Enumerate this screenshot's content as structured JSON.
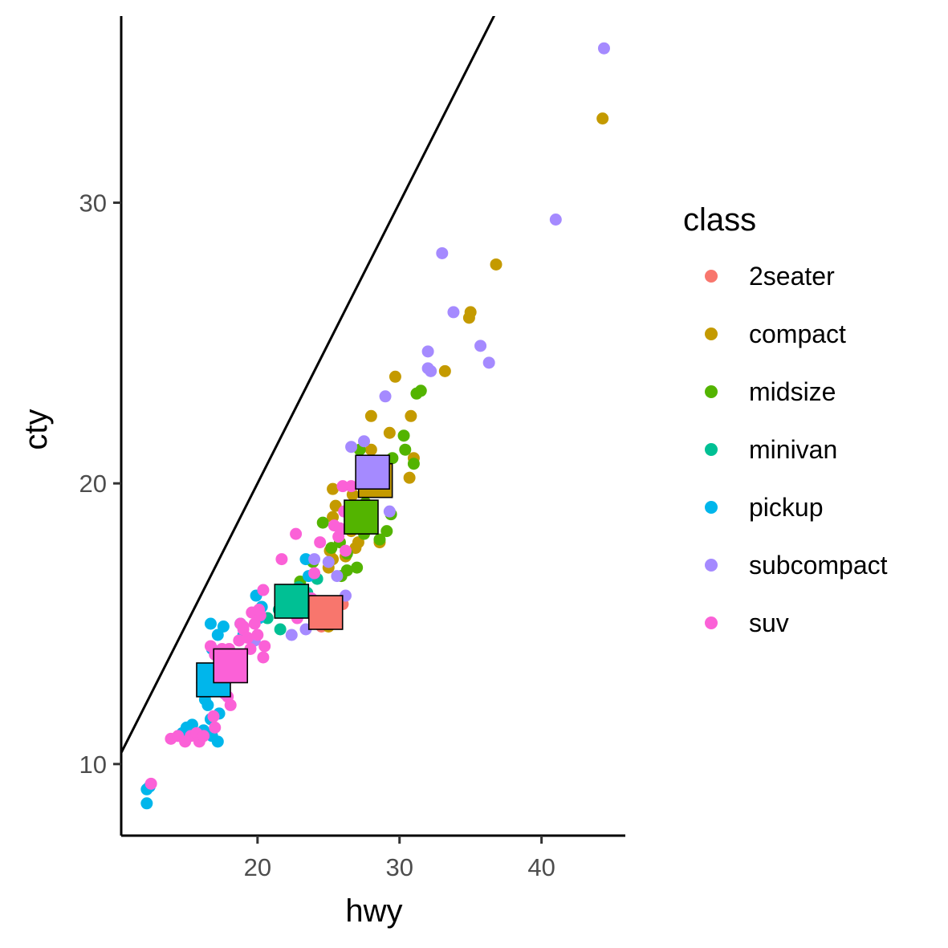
{
  "chart_data": {
    "type": "scatter",
    "title": "",
    "xlabel": "hwy",
    "ylabel": "cty",
    "xlim": [
      10.4,
      45.9
    ],
    "ylim": [
      7.45,
      36.65
    ],
    "x_ticks": [
      20,
      30,
      40
    ],
    "y_ticks": [
      10,
      20,
      30
    ],
    "grid": false,
    "legend": {
      "title": "class",
      "position": "right",
      "entries": [
        "2seater",
        "compact",
        "midsize",
        "minivan",
        "pickup",
        "subcompact",
        "suv"
      ]
    },
    "colors": {
      "2seater": "#F8766D",
      "compact": "#C49A00",
      "midsize": "#53B400",
      "minivan": "#00C094",
      "pickup": "#00B6EB",
      "subcompact": "#A58AFF",
      "suv": "#FB61D7"
    },
    "reference_line": {
      "intercept": 0,
      "slope": 1
    },
    "series": [
      {
        "name": "2seater",
        "points": [
          [
            24.2,
            15.0
          ],
          [
            24.8,
            15.3
          ],
          [
            25.5,
            15.4
          ],
          [
            26.0,
            15.7
          ],
          [
            24.5,
            14.9
          ]
        ]
      },
      {
        "name": "compact",
        "points": [
          [
            44.3,
            33.0
          ],
          [
            36.8,
            27.8
          ],
          [
            35.0,
            26.1
          ],
          [
            34.9,
            25.9
          ],
          [
            33.2,
            24.0
          ],
          [
            29.7,
            23.8
          ],
          [
            28.0,
            22.4
          ],
          [
            30.8,
            22.4
          ],
          [
            29.3,
            21.8
          ],
          [
            28.0,
            21.2
          ],
          [
            29.1,
            20.8
          ],
          [
            31.0,
            20.9
          ],
          [
            30.7,
            20.2
          ],
          [
            27.5,
            20.4
          ],
          [
            26.7,
            19.6
          ],
          [
            25.3,
            19.8
          ],
          [
            25.5,
            19.2
          ],
          [
            25.3,
            18.8
          ],
          [
            26.6,
            18.3
          ],
          [
            27.1,
            17.9
          ],
          [
            25.1,
            17.6
          ],
          [
            25.3,
            17.3
          ],
          [
            26.2,
            17.4
          ],
          [
            25.0,
            17.0
          ],
          [
            28.6,
            17.9
          ],
          [
            26.9,
            17.7
          ],
          [
            25.0,
            14.9
          ]
        ]
      },
      {
        "name": "midsize",
        "points": [
          [
            27.2,
            21.2
          ],
          [
            29.5,
            20.9
          ],
          [
            30.4,
            21.2
          ],
          [
            31.2,
            23.2
          ],
          [
            31.5,
            23.3
          ],
          [
            30.3,
            21.7
          ],
          [
            31.0,
            20.7
          ],
          [
            29.4,
            18.9
          ],
          [
            27.6,
            19.3
          ],
          [
            26.5,
            18.7
          ],
          [
            24.6,
            18.6
          ],
          [
            25.8,
            17.9
          ],
          [
            26.3,
            17.5
          ],
          [
            28.6,
            18.0
          ],
          [
            29.1,
            18.3
          ],
          [
            27.5,
            18.2
          ],
          [
            25.2,
            17.7
          ],
          [
            26.3,
            16.9
          ],
          [
            27.0,
            17.0
          ],
          [
            25.9,
            16.7
          ],
          [
            23.9,
            17.2
          ],
          [
            22.5,
            16.1
          ],
          [
            23.0,
            16.5
          ],
          [
            24.0,
            15.8
          ]
        ]
      },
      {
        "name": "minivan",
        "points": [
          [
            21.5,
            15.5
          ],
          [
            21.6,
            14.8
          ],
          [
            22.9,
            16.3
          ],
          [
            20.7,
            15.2
          ],
          [
            22.1,
            15.6
          ],
          [
            24.2,
            16.6
          ],
          [
            23.5,
            16.1
          ]
        ]
      },
      {
        "name": "pickup",
        "points": [
          [
            12.2,
            9.1
          ],
          [
            12.2,
            8.6
          ],
          [
            12.4,
            9.2
          ],
          [
            16.5,
            12.1
          ],
          [
            16.3,
            12.3
          ],
          [
            15.0,
            11.3
          ],
          [
            15.4,
            11.4
          ],
          [
            17.2,
            10.8
          ],
          [
            16.8,
            11.0
          ],
          [
            16.1,
            12.9
          ],
          [
            17.0,
            12.9
          ],
          [
            17.1,
            13.4
          ],
          [
            16.8,
            14.1
          ],
          [
            17.2,
            14.6
          ],
          [
            16.7,
            15.0
          ],
          [
            17.6,
            14.9
          ],
          [
            19.0,
            14.6
          ],
          [
            20.1,
            15.2
          ],
          [
            19.9,
            16.0
          ],
          [
            20.3,
            15.6
          ],
          [
            18.8,
            15.0
          ],
          [
            18.4,
            13.3
          ],
          [
            22.2,
            15.6
          ],
          [
            23.6,
            16.7
          ],
          [
            23.4,
            17.3
          ],
          [
            14.7,
            11.1
          ],
          [
            15.2,
            11.2
          ],
          [
            16.7,
            11.6
          ],
          [
            17.3,
            11.8
          ],
          [
            16.2,
            11.2
          ]
        ]
      },
      {
        "name": "subcompact",
        "points": [
          [
            44.4,
            35.5
          ],
          [
            41.0,
            29.4
          ],
          [
            33.0,
            28.2
          ],
          [
            33.8,
            26.1
          ],
          [
            32.0,
            24.7
          ],
          [
            35.7,
            24.9
          ],
          [
            36.3,
            24.3
          ],
          [
            32.2,
            24.0
          ],
          [
            32.0,
            24.1
          ],
          [
            29.0,
            23.1
          ],
          [
            27.5,
            21.5
          ],
          [
            26.6,
            21.3
          ],
          [
            28.7,
            20.6
          ],
          [
            29.3,
            19.0
          ],
          [
            25.0,
            17.2
          ],
          [
            25.6,
            16.7
          ],
          [
            26.2,
            16.0
          ],
          [
            24.0,
            17.3
          ],
          [
            23.4,
            14.8
          ],
          [
            22.4,
            14.6
          ],
          [
            22.8,
            15.5
          ],
          [
            23.9,
            15.3
          ],
          [
            19.8,
            14.4
          ]
        ]
      },
      {
        "name": "suv",
        "points": [
          [
            12.5,
            9.3
          ],
          [
            13.9,
            10.9
          ],
          [
            14.4,
            11.0
          ],
          [
            14.9,
            10.8
          ],
          [
            15.3,
            11.0
          ],
          [
            15.7,
            11.1
          ],
          [
            15.9,
            10.8
          ],
          [
            16.2,
            11.0
          ],
          [
            17.0,
            11.3
          ],
          [
            16.9,
            11.7
          ],
          [
            17.9,
            12.4
          ],
          [
            17.7,
            12.5
          ],
          [
            18.1,
            12.1
          ],
          [
            16.7,
            13.4
          ],
          [
            17.0,
            13.9
          ],
          [
            16.7,
            14.2
          ],
          [
            17.5,
            14.1
          ],
          [
            17.8,
            13.8
          ],
          [
            18.4,
            13.2
          ],
          [
            18.7,
            14.4
          ],
          [
            19.0,
            14.8
          ],
          [
            19.3,
            14.5
          ],
          [
            18.8,
            15.0
          ],
          [
            19.6,
            15.4
          ],
          [
            19.8,
            15.0
          ],
          [
            20.0,
            14.6
          ],
          [
            20.5,
            14.2
          ],
          [
            20.4,
            13.8
          ],
          [
            20.2,
            15.3
          ],
          [
            20.4,
            16.2
          ],
          [
            21.7,
            17.3
          ],
          [
            22.7,
            18.2
          ],
          [
            23.8,
            15.9
          ],
          [
            24.0,
            16.8
          ],
          [
            25.7,
            18.1
          ],
          [
            24.4,
            17.9
          ],
          [
            25.4,
            18.5
          ],
          [
            25.8,
            18.4
          ],
          [
            26.1,
            19.0
          ],
          [
            26.0,
            19.9
          ],
          [
            26.6,
            19.9
          ],
          [
            26.2,
            17.6
          ],
          [
            22.4,
            15.4
          ],
          [
            22.8,
            15.2
          ],
          [
            20.1,
            15.5
          ],
          [
            19.5,
            14.1
          ],
          [
            18.0,
            14.1
          ],
          [
            19.0,
            14.9
          ]
        ]
      }
    ],
    "class_means": [
      {
        "name": "2seater",
        "x": 24.8,
        "y": 15.4
      },
      {
        "name": "compact",
        "x": 28.3,
        "y": 20.1
      },
      {
        "name": "midsize",
        "x": 27.3,
        "y": 18.8
      },
      {
        "name": "minivan",
        "x": 22.4,
        "y": 15.8
      },
      {
        "name": "pickup",
        "x": 16.9,
        "y": 13.0
      },
      {
        "name": "subcompact",
        "x": 28.1,
        "y": 20.4
      },
      {
        "name": "suv",
        "x": 18.1,
        "y": 13.5
      }
    ]
  }
}
